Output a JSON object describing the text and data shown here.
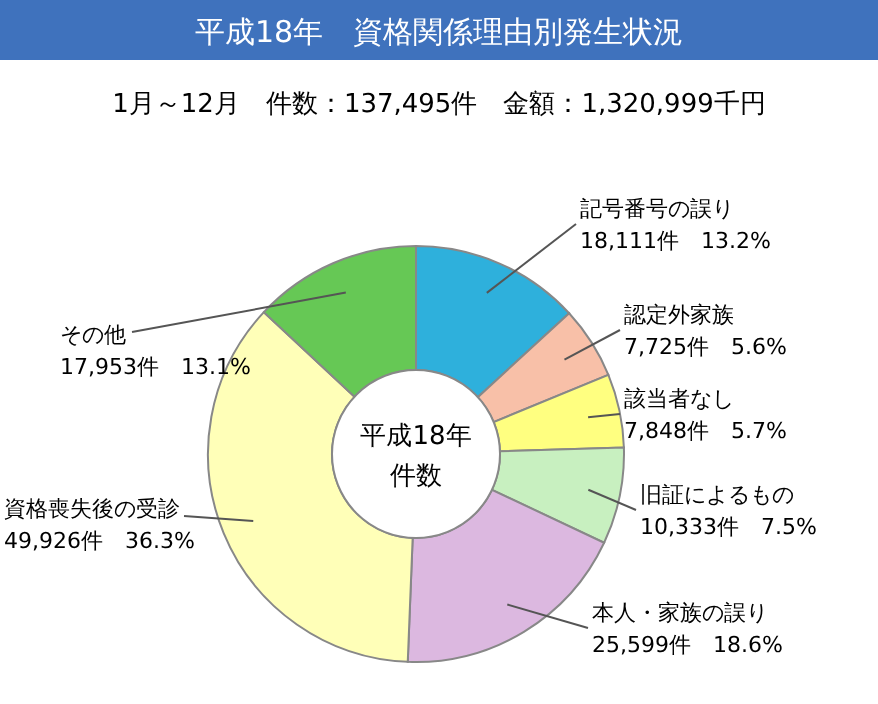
{
  "chart_data": {
    "type": "donut",
    "title": "平成18年　資格関係理由別発生状況",
    "subtitle": "1月～12月　件数：137,495件　金額：1,320,999千円",
    "categories": [
      "記号番号の誤り",
      "認定外家族",
      "該当者なし",
      "旧証によるもの",
      "本人・家族の誤り",
      "資格喪失後の受診",
      "その他"
    ],
    "values": [
      18111,
      7725,
      7848,
      10333,
      25599,
      49926,
      17953
    ],
    "value_labels": [
      "18,111件　13.2%",
      "7,725件　5.6%",
      "7,848件　5.7%",
      "10,333件　7.5%",
      "25,599件　18.6%",
      "49,926件　36.3%",
      "17,953件　13.1%"
    ],
    "colors": [
      "#2eb0dc",
      "#f8c0a8",
      "#ffff80",
      "#c8f0c0",
      "#dcb8e0",
      "#ffffb8",
      "#66c855"
    ],
    "annotations": [
      "平成18年",
      "件数"
    ],
    "legend": false
  }
}
